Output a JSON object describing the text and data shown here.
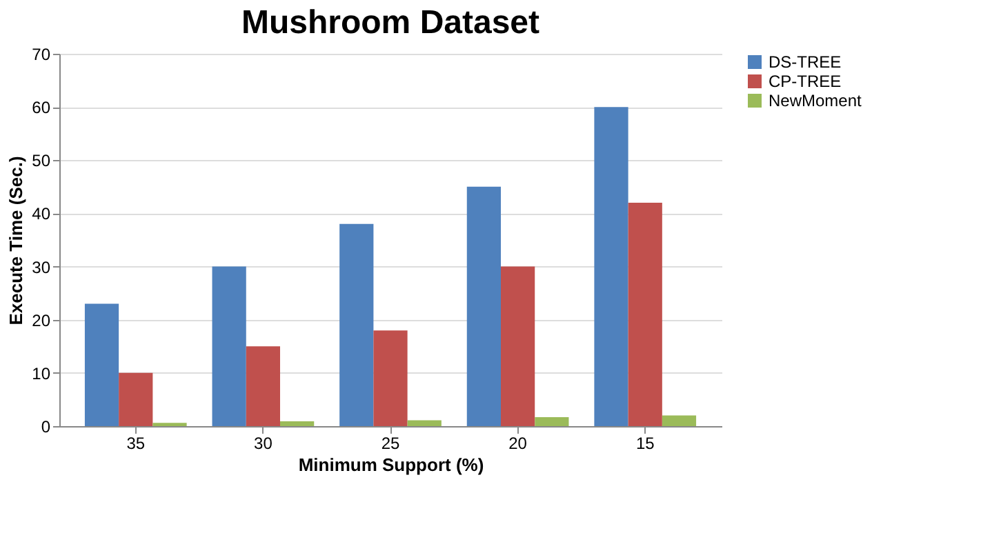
{
  "chart_data": {
    "type": "bar",
    "title": "Mushroom Dataset",
    "xlabel": "Minimum Support (%)",
    "ylabel": "Execute Time (Sec.)",
    "categories": [
      "35",
      "30",
      "25",
      "20",
      "15"
    ],
    "series": [
      {
        "name": "DS-TREE",
        "color": "#4f81bd",
        "values": [
          23,
          30,
          38,
          45,
          60
        ]
      },
      {
        "name": "CP-TREE",
        "color": "#c0504d",
        "values": [
          10,
          15,
          18,
          30,
          42
        ]
      },
      {
        "name": "NewMoment",
        "color": "#9bbb59",
        "values": [
          0.6,
          0.9,
          1.1,
          1.7,
          2.0
        ]
      }
    ],
    "ylim": [
      0,
      70
    ],
    "yticks": [
      0,
      10,
      20,
      30,
      40,
      50,
      60,
      70
    ],
    "grid": "y",
    "legend": "right"
  }
}
